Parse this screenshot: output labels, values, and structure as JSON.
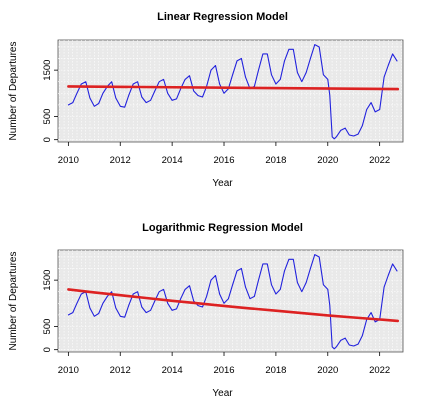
{
  "colors": {
    "panel_bg": "#e9e9e9",
    "actual_line": "#2222dd",
    "fit_line": "#dd2222",
    "grid": "#ffffff"
  },
  "chart_data": [
    {
      "type": "line",
      "title": "Linear Regression Model",
      "xlabel": "Year",
      "ylabel": "Number of Departures",
      "xlim": [
        2009.6,
        2022.9
      ],
      "ylim": [
        -50,
        2150
      ],
      "xticks": [
        2010,
        2012,
        2014,
        2016,
        2018,
        2020,
        2022
      ],
      "yticks": [
        0,
        500,
        1500
      ],
      "grid": true,
      "series": [
        {
          "role": "actual",
          "x": [
            2010.0,
            2010.17,
            2010.33,
            2010.5,
            2010.67,
            2010.83,
            2011.0,
            2011.17,
            2011.33,
            2011.5,
            2011.67,
            2011.83,
            2012.0,
            2012.17,
            2012.33,
            2012.5,
            2012.67,
            2012.83,
            2013.0,
            2013.17,
            2013.33,
            2013.5,
            2013.67,
            2013.83,
            2014.0,
            2014.17,
            2014.33,
            2014.5,
            2014.67,
            2014.83,
            2015.0,
            2015.17,
            2015.33,
            2015.5,
            2015.67,
            2015.83,
            2016.0,
            2016.17,
            2016.33,
            2016.5,
            2016.67,
            2016.83,
            2017.0,
            2017.17,
            2017.33,
            2017.5,
            2017.67,
            2017.83,
            2018.0,
            2018.17,
            2018.33,
            2018.5,
            2018.67,
            2018.83,
            2019.0,
            2019.17,
            2019.33,
            2019.5,
            2019.67,
            2019.83,
            2020.0,
            2020.08,
            2020.17,
            2020.25,
            2020.33,
            2020.5,
            2020.67,
            2020.83,
            2021.0,
            2021.17,
            2021.33,
            2021.5,
            2021.67,
            2021.83,
            2022.0,
            2022.17,
            2022.33,
            2022.5,
            2022.67
          ],
          "y": [
            750,
            800,
            1000,
            1200,
            1250,
            900,
            720,
            780,
            1000,
            1150,
            1250,
            900,
            720,
            700,
            960,
            1200,
            1250,
            920,
            800,
            850,
            1050,
            1250,
            1300,
            1000,
            850,
            880,
            1100,
            1300,
            1380,
            1050,
            950,
            920,
            1150,
            1500,
            1600,
            1200,
            1000,
            1100,
            1400,
            1700,
            1750,
            1350,
            1100,
            1150,
            1500,
            1850,
            1850,
            1400,
            1200,
            1300,
            1700,
            1950,
            1950,
            1450,
            1250,
            1450,
            1750,
            2050,
            2000,
            1400,
            1300,
            950,
            60,
            20,
            60,
            200,
            250,
            100,
            80,
            120,
            300,
            650,
            800,
            600,
            650,
            1350,
            1600,
            1850,
            1700
          ]
        },
        {
          "role": "fit",
          "x": [
            2010,
            2022.7
          ],
          "y": [
            1150,
            1090
          ]
        }
      ]
    },
    {
      "type": "line",
      "title": "Logarithmic Regression Model",
      "xlabel": "Year",
      "ylabel": "Number of Departures",
      "xlim": [
        2009.6,
        2022.9
      ],
      "ylim": [
        -50,
        2150
      ],
      "xticks": [
        2010,
        2012,
        2014,
        2016,
        2018,
        2020,
        2022
      ],
      "yticks": [
        0,
        500,
        1500
      ],
      "grid": true,
      "series": [
        {
          "role": "actual",
          "x": [
            2010.0,
            2010.17,
            2010.33,
            2010.5,
            2010.67,
            2010.83,
            2011.0,
            2011.17,
            2011.33,
            2011.5,
            2011.67,
            2011.83,
            2012.0,
            2012.17,
            2012.33,
            2012.5,
            2012.67,
            2012.83,
            2013.0,
            2013.17,
            2013.33,
            2013.5,
            2013.67,
            2013.83,
            2014.0,
            2014.17,
            2014.33,
            2014.5,
            2014.67,
            2014.83,
            2015.0,
            2015.17,
            2015.33,
            2015.5,
            2015.67,
            2015.83,
            2016.0,
            2016.17,
            2016.33,
            2016.5,
            2016.67,
            2016.83,
            2017.0,
            2017.17,
            2017.33,
            2017.5,
            2017.67,
            2017.83,
            2018.0,
            2018.17,
            2018.33,
            2018.5,
            2018.67,
            2018.83,
            2019.0,
            2019.17,
            2019.33,
            2019.5,
            2019.67,
            2019.83,
            2020.0,
            2020.08,
            2020.17,
            2020.25,
            2020.33,
            2020.5,
            2020.67,
            2020.83,
            2021.0,
            2021.17,
            2021.33,
            2021.5,
            2021.67,
            2021.83,
            2022.0,
            2022.17,
            2022.33,
            2022.5,
            2022.67
          ],
          "y": [
            750,
            800,
            1000,
            1200,
            1250,
            900,
            720,
            780,
            1000,
            1150,
            1250,
            900,
            720,
            700,
            960,
            1200,
            1250,
            920,
            800,
            850,
            1050,
            1250,
            1300,
            1000,
            850,
            880,
            1100,
            1300,
            1380,
            1050,
            950,
            920,
            1150,
            1500,
            1600,
            1200,
            1000,
            1100,
            1400,
            1700,
            1750,
            1350,
            1100,
            1150,
            1500,
            1850,
            1850,
            1400,
            1200,
            1300,
            1700,
            1950,
            1950,
            1450,
            1250,
            1450,
            1750,
            2050,
            2000,
            1400,
            1300,
            950,
            60,
            20,
            60,
            200,
            250,
            100,
            80,
            120,
            300,
            650,
            800,
            600,
            650,
            1350,
            1600,
            1850,
            1700
          ]
        },
        {
          "role": "fit",
          "x": [
            2010,
            2011,
            2012,
            2013,
            2014,
            2015,
            2016,
            2017,
            2018,
            2019,
            2020,
            2021,
            2022,
            2022.7
          ],
          "y": [
            1300,
            1235,
            1175,
            1115,
            1055,
            1000,
            945,
            890,
            840,
            790,
            740,
            695,
            650,
            620
          ]
        }
      ]
    }
  ]
}
